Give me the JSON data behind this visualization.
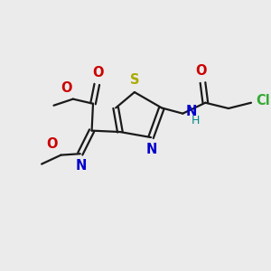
{
  "bg_color": "#ebebeb",
  "bond_color": "#1a1a1a",
  "S_color": "#aaaa00",
  "N_color": "#0000cc",
  "O_color": "#cc0000",
  "Cl_color": "#33aa33",
  "NH_color": "#0000cc",
  "H_color": "#008888",
  "line_width": 1.6,
  "font_size": 10.5,
  "fig_w": 3.0,
  "fig_h": 3.0,
  "dpi": 100,
  "xlim": [
    0,
    10
  ],
  "ylim": [
    0,
    10
  ]
}
